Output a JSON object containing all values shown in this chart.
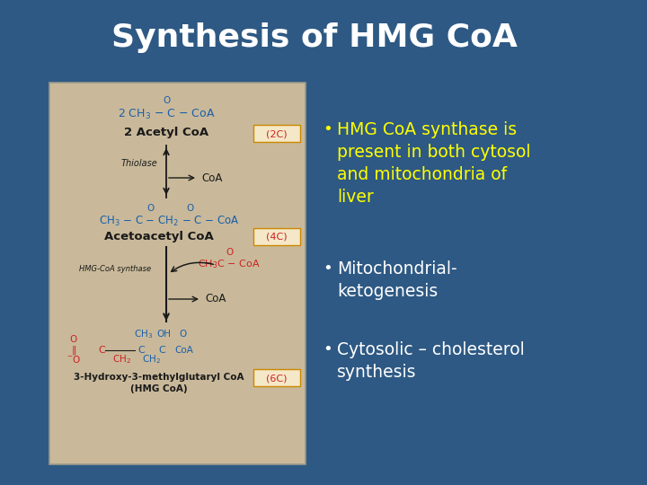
{
  "background_color": "#2E5984",
  "title": "Synthesis of HMG CoA",
  "title_color": "#FFFFFF",
  "title_fontsize": 26,
  "diagram_box_color": "#C9B99A",
  "bullet_points": [
    "HMG CoA synthase is\npresent in both cytosol\nand mitochondria of\nliver",
    "Mitochondrial-\nketogenesis",
    "Cytosolic – cholesterol\nsynthesis"
  ],
  "bullet_color_first": "#FFFF00",
  "bullet_color_rest": "#FFFFFF",
  "bullet_fontsize": 13.5,
  "blue_color": "#1A5FAB",
  "red_color": "#CC2222",
  "black_color": "#1A1A1A",
  "nc_box_color": "#F5E8C8",
  "nc_box_edge": "#CC8800"
}
